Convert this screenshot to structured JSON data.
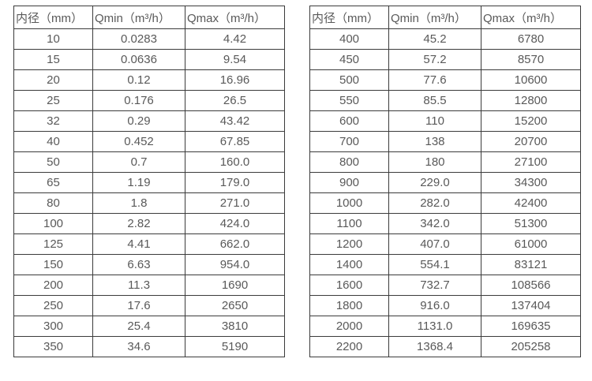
{
  "colors": {
    "background": "#ffffff",
    "border": "#3b3b3b",
    "text": "#595959"
  },
  "tables": [
    {
      "name": "flow-spec-table-small-diameters",
      "headers": [
        "内径（mm）",
        "Qmin（m³/h）",
        "Qmax（m³/h）"
      ],
      "rows": [
        [
          "10",
          "0.0283",
          "4.42"
        ],
        [
          "15",
          "0.0636",
          "9.54"
        ],
        [
          "20",
          "0.12",
          "16.96"
        ],
        [
          "25",
          "0.176",
          "26.5"
        ],
        [
          "32",
          "0.29",
          "43.42"
        ],
        [
          "40",
          "0.452",
          "67.85"
        ],
        [
          "50",
          "0.7",
          "160.0"
        ],
        [
          "65",
          "1.19",
          "179.0"
        ],
        [
          "80",
          "1.8",
          "271.0"
        ],
        [
          "100",
          "2.82",
          "424.0"
        ],
        [
          "125",
          "4.41",
          "662.0"
        ],
        [
          "150",
          "6.63",
          "954.0"
        ],
        [
          "200",
          "11.3",
          "1690"
        ],
        [
          "250",
          "17.6",
          "2650"
        ],
        [
          "300",
          "25.4",
          "3810"
        ],
        [
          "350",
          "34.6",
          "5190"
        ]
      ]
    },
    {
      "name": "flow-spec-table-large-diameters",
      "headers": [
        "内径（mm）",
        "Qmin（m³/h）",
        "Qmax（m³/h）"
      ],
      "rows": [
        [
          "400",
          "45.2",
          "6780"
        ],
        [
          "450",
          "57.2",
          "8570"
        ],
        [
          "500",
          "77.6",
          "10600"
        ],
        [
          "550",
          "85.5",
          "12800"
        ],
        [
          "600",
          "110",
          "15200"
        ],
        [
          "700",
          "138",
          "20700"
        ],
        [
          "800",
          "180",
          "27100"
        ],
        [
          "900",
          "229.0",
          "34300"
        ],
        [
          "1000",
          "282.0",
          "42400"
        ],
        [
          "1100",
          "342.0",
          "51300"
        ],
        [
          "1200",
          "407.0",
          "61000"
        ],
        [
          "1400",
          "554.1",
          "83121"
        ],
        [
          "1600",
          "732.7",
          "108566"
        ],
        [
          "1800",
          "916.0",
          "137404"
        ],
        [
          "2000",
          "1131.0",
          "169635"
        ],
        [
          "2200",
          "1368.4",
          "205258"
        ]
      ]
    }
  ]
}
